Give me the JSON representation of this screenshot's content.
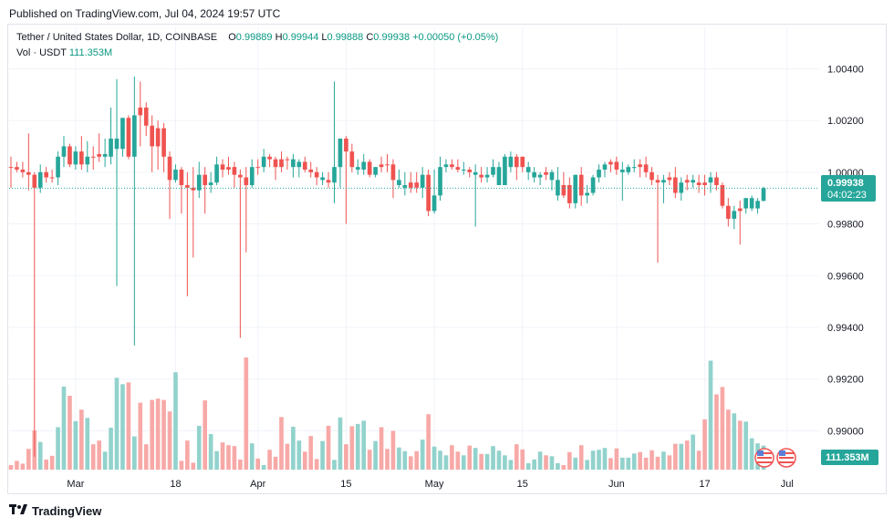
{
  "header": {
    "published": "Published on TradingView.com, Jul 04, 2024 19:57 UTC"
  },
  "legend": {
    "symbol": "Tether / United States Dollar, 1D, COINBASE",
    "o_label": "O",
    "o_value": "0.99889",
    "h_label": "H",
    "h_value": "0.99944",
    "l_label": "L",
    "l_value": "0.99888",
    "c_label": "C",
    "c_value": "0.99938",
    "change": "+0.00050 (+0.05%)",
    "vol_label": "Vol · USDT",
    "vol_value": "111.353M"
  },
  "footer": {
    "brand": "TradingView"
  },
  "colors": {
    "up": "#26a69a",
    "down": "#ef5350",
    "up_vol": "#92d2cc",
    "down_vol": "#f7a9a7",
    "grid": "#f0f3fa",
    "text": "#131722"
  },
  "chart_data": {
    "type": "candlestick",
    "price_axis": {
      "ticks": [
        "1.00400",
        "1.00200",
        "1.00000",
        "0.99800",
        "0.99600",
        "0.99400",
        "0.99200",
        "0.99000"
      ],
      "ylim": [
        0.9885,
        1.0056
      ]
    },
    "time_axis": {
      "labels": [
        "Mar",
        "18",
        "Apr",
        "15",
        "May",
        "15",
        "Jun",
        "17",
        "Jul"
      ]
    },
    "last_price": {
      "label": "0.99938",
      "countdown": "04:02:23",
      "value": 0.99938
    },
    "last_volume": {
      "label": "111.353M"
    },
    "candles": [
      [
        1.0002,
        1.0006,
        0.9994,
        1.0002,
        0.99,
        0
      ],
      [
        1.0002,
        1.0004,
        1.0,
        1.0001,
        1.9,
        0
      ],
      [
        1.0001,
        1.0004,
        0.9998,
        1.0,
        1.3,
        0
      ],
      [
        1.0,
        1.0015,
        0.9993,
        0.9999,
        4.5,
        0
      ],
      [
        0.9999,
        1.0,
        0.989,
        0.9994,
        8.5,
        0
      ],
      [
        0.9994,
        1.0003,
        0.9992,
        1.0,
        6.0,
        1
      ],
      [
        1.0,
        1.0002,
        0.9996,
        0.9998,
        2.2,
        0
      ],
      [
        0.9998,
        1.0001,
        0.9996,
        0.9998,
        3.0,
        0
      ],
      [
        0.9998,
        1.0008,
        0.9995,
        1.0006,
        9.2,
        1
      ],
      [
        1.0006,
        1.0014,
        1.0002,
        1.001,
        18.0,
        1
      ],
      [
        1.001,
        1.0011,
        1.0002,
        1.0003,
        16.0,
        0
      ],
      [
        1.0003,
        1.001,
        1.0001,
        1.0008,
        10.5,
        1
      ],
      [
        1.0008,
        1.0014,
        1.0001,
        1.0003,
        13.0,
        0
      ],
      [
        1.0003,
        1.0012,
        1.0,
        1.0006,
        11.2,
        1
      ],
      [
        1.0006,
        1.001,
        1.0001,
        1.0006,
        5.5,
        0
      ],
      [
        1.0006,
        1.0015,
        1.0004,
        1.0007,
        6.3,
        0
      ],
      [
        1.0007,
        1.0013,
        1.0002,
        1.0006,
        3.9,
        1
      ],
      [
        1.0006,
        1.0025,
        1.0003,
        1.0013,
        9.1,
        1
      ],
      [
        1.0013,
        1.0036,
        0.9956,
        1.0009,
        19.9,
        1
      ],
      [
        1.0009,
        1.0021,
        1.0006,
        1.0021,
        18.5,
        1
      ],
      [
        1.0021,
        1.0022,
        1.0005,
        1.0006,
        18.9,
        0
      ],
      [
        1.0006,
        1.0037,
        0.9933,
        1.0022,
        7.2,
        1
      ],
      [
        1.0022,
        1.0035,
        1.001,
        1.0025,
        14.5,
        0
      ],
      [
        1.0025,
        1.0027,
        1.0014,
        1.0018,
        5.5,
        0
      ],
      [
        1.0018,
        1.0022,
        1.0,
        1.001,
        15.1,
        0
      ],
      [
        1.001,
        1.002,
        1.0001,
        1.0017,
        15.4,
        0
      ],
      [
        1.0017,
        1.0019,
        1.0,
        1.0006,
        15.1,
        0
      ],
      [
        1.0006,
        1.0008,
        0.9982,
        0.9997,
        12.6,
        0
      ],
      [
        0.9997,
        1.0003,
        0.9996,
        1.0001,
        21.1,
        1
      ],
      [
        1.0001,
        1.0002,
        0.9984,
        0.9995,
        1.9,
        0
      ],
      [
        0.9995,
        1.0,
        0.9952,
        0.9994,
        6.3,
        0
      ],
      [
        0.9994,
        1.0002,
        0.9967,
        0.9993,
        1.5,
        0
      ],
      [
        0.9993,
        1.0004,
        0.999,
        0.9999,
        9.5,
        1
      ],
      [
        0.9999,
        1.0002,
        0.9984,
        0.9995,
        15.0,
        0
      ],
      [
        0.9995,
        1.0,
        0.9992,
        0.9996,
        7.7,
        1
      ],
      [
        0.9996,
        1.0006,
        0.9995,
        1.0003,
        4.0,
        1
      ],
      [
        1.0003,
        1.0005,
        0.9998,
        1.0001,
        5.9,
        0
      ],
      [
        1.0001,
        1.0006,
        0.9999,
        1.0002,
        5.3,
        0
      ],
      [
        1.0002,
        1.0004,
        0.9994,
        0.9999,
        5.1,
        0
      ],
      [
        0.9999,
        1.0001,
        0.9936,
        0.9998,
        2.2,
        0
      ],
      [
        0.9998,
        1.0002,
        0.9969,
        0.9995,
        24.3,
        0
      ],
      [
        0.9995,
        1.0005,
        0.9994,
        1.0002,
        5.7,
        1
      ],
      [
        1.0002,
        1.0005,
        0.9999,
        1.0002,
        2.4,
        0
      ],
      [
        1.0002,
        1.0009,
        1.0,
        1.0006,
        1.0,
        1
      ],
      [
        1.0006,
        1.0007,
        1.0002,
        1.0005,
        4.3,
        0
      ],
      [
        1.0005,
        1.0006,
        0.9997,
        1.0002,
        2.8,
        0
      ],
      [
        1.0002,
        1.0008,
        1.0,
        1.0005,
        11.4,
        0
      ],
      [
        1.0005,
        1.0006,
        1.0001,
        1.0005,
        5.6,
        0
      ],
      [
        1.0005,
        1.0007,
        0.9998,
        1.0002,
        9.3,
        1
      ],
      [
        1.0002,
        1.0005,
        0.9998,
        1.0004,
        6.3,
        1
      ],
      [
        1.0004,
        1.0006,
        1.0,
        1.0001,
        3.9,
        0
      ],
      [
        1.0001,
        1.0004,
        0.9998,
        1.0,
        7.3,
        0
      ],
      [
        1.0,
        1.0002,
        0.9995,
        0.9998,
        2.3,
        0
      ],
      [
        0.9998,
        1.0,
        0.9995,
        0.9997,
        6.2,
        1
      ],
      [
        0.9997,
        1.0,
        0.9994,
        0.9996,
        9.5,
        0
      ],
      [
        0.9996,
        1.0035,
        0.9988,
        1.0002,
        2.1,
        1
      ],
      [
        1.0002,
        1.0013,
        0.9994,
        1.0013,
        11.3,
        1
      ],
      [
        1.0013,
        1.0014,
        0.998,
        1.0008,
        5.5,
        0
      ],
      [
        1.0008,
        1.0011,
        1.0,
        1.0002,
        9.4,
        0
      ],
      [
        1.0002,
        1.0005,
        0.9999,
        1.0001,
        9.9,
        1
      ],
      [
        1.0001,
        1.0007,
        0.9999,
        1.0004,
        10.6,
        1
      ],
      [
        1.0004,
        1.0005,
        0.9998,
        0.9999,
        4.3,
        0
      ],
      [
        0.9999,
        1.0002,
        0.9998,
        1.0002,
        6.2,
        1
      ],
      [
        1.0002,
        1.0006,
        1.0,
        1.0003,
        9.2,
        0
      ],
      [
        1.0003,
        1.0007,
        1.0,
        1.0003,
        4.5,
        0
      ],
      [
        1.0003,
        1.0005,
        0.999,
        0.9997,
        8.4,
        0
      ],
      [
        0.9997,
        1.0001,
        0.9994,
        0.9995,
        4.8,
        1
      ],
      [
        0.9995,
        1.0,
        0.9991,
        0.9994,
        4.0,
        1
      ],
      [
        0.9994,
        1.0,
        0.9992,
        0.9996,
        2.9,
        0
      ],
      [
        0.9996,
        1.0,
        0.9992,
        0.9994,
        4.0,
        0
      ],
      [
        0.9994,
        1.0002,
        0.999,
        0.9999,
        6.5,
        1
      ],
      [
        0.9999,
        1.0001,
        0.9983,
        0.9985,
        12.0,
        0
      ],
      [
        0.9985,
        1.0001,
        0.9984,
        0.9991,
        5.0,
        1
      ],
      [
        0.9991,
        1.0006,
        0.9989,
        1.0002,
        4.1,
        1
      ],
      [
        1.0002,
        1.0005,
        1.0,
        1.0003,
        3.1,
        1
      ],
      [
        1.0003,
        1.0005,
        1.0001,
        1.0002,
        5.3,
        0
      ],
      [
        1.0002,
        1.0005,
        1.0,
        1.0001,
        3.9,
        0
      ],
      [
        1.0001,
        1.0004,
        0.9999,
        1.0001,
        3.1,
        1
      ],
      [
        1.0001,
        1.0002,
        0.9998,
        1.0,
        5.2,
        0
      ],
      [
        1.0,
        1.0003,
        0.9979,
        0.9999,
        4.7,
        1
      ],
      [
        0.9999,
        1.0002,
        0.9996,
        0.9998,
        3.4,
        0
      ],
      [
        0.9998,
        1.0002,
        0.9996,
        0.9999,
        3.4,
        1
      ],
      [
        0.9999,
        1.0005,
        0.9998,
        1.0002,
        5.1,
        1
      ],
      [
        1.0002,
        1.0004,
        0.9996,
        0.9995,
        4.1,
        1
      ],
      [
        0.9995,
        1.0007,
        0.9995,
        1.0006,
        3.1,
        1
      ],
      [
        1.0006,
        1.0008,
        1.0,
        1.0002,
        2.1,
        1
      ],
      [
        1.0002,
        1.0007,
        0.9997,
        1.0006,
        5.5,
        0
      ],
      [
        1.0006,
        1.0006,
        1.0,
        1.0002,
        4.4,
        0
      ],
      [
        1.0002,
        1.0004,
        0.9997,
        1.0,
        1.4,
        1
      ],
      [
        1.0,
        1.0002,
        0.9996,
        0.9998,
        2.2,
        1
      ],
      [
        0.9998,
        1.0,
        0.9995,
        0.9999,
        3.9,
        1
      ],
      [
        0.9999,
        1.0002,
        0.9997,
        1.0,
        3.1,
        0
      ],
      [
        1.0,
        1.0001,
        0.9993,
        0.9997,
        2.9,
        1
      ],
      [
        0.9997,
        1.0002,
        0.9989,
        0.9991,
        1.4,
        1
      ],
      [
        0.9991,
        1.0,
        0.999,
        0.9995,
        1.0,
        0
      ],
      [
        0.9995,
        0.9998,
        0.9986,
        0.9988,
        3.8,
        0
      ],
      [
        0.9988,
        0.9999,
        0.9986,
        0.9999,
        2.6,
        1
      ],
      [
        0.9999,
        1.0002,
        0.9987,
        0.9991,
        5.3,
        0
      ],
      [
        0.9991,
        0.9995,
        0.9988,
        0.9992,
        2.1,
        1
      ],
      [
        0.9992,
        0.9999,
        0.9991,
        0.9998,
        4.1,
        1
      ],
      [
        0.9998,
        1.0003,
        0.9996,
        1.0001,
        4.3,
        1
      ],
      [
        1.0001,
        1.0004,
        0.9998,
        1.0003,
        4.7,
        1
      ],
      [
        1.0003,
        1.0005,
        1.0,
        1.0004,
        2.5,
        0
      ],
      [
        1.0004,
        1.0006,
        0.9999,
        1.0001,
        4.6,
        0
      ],
      [
        1.0001,
        1.0004,
        0.9989,
        1.0,
        2.6,
        1
      ],
      [
        1.0,
        1.0003,
        0.9999,
        1.0002,
        2.6,
        1
      ],
      [
        1.0002,
        1.0005,
        1.0,
        1.0002,
        3.5,
        1
      ],
      [
        1.0002,
        1.0005,
        0.9998,
        1.0003,
        3.8,
        0
      ],
      [
        1.0003,
        1.0006,
        0.9998,
        1.0,
        2.6,
        0
      ],
      [
        1.0,
        1.0002,
        0.9995,
        0.9997,
        4.2,
        0
      ],
      [
        0.9997,
        0.9999,
        0.9965,
        0.9996,
        2.8,
        0
      ],
      [
        0.9996,
        0.9999,
        0.9988,
        0.9997,
        3.9,
        1
      ],
      [
        0.9997,
        1.0,
        0.9995,
        0.9998,
        3.1,
        0
      ],
      [
        0.9998,
        1.0002,
        0.999,
        0.9992,
        5.6,
        0
      ],
      [
        0.9992,
        0.9998,
        0.9989,
        0.9996,
        5.6,
        1
      ],
      [
        0.9996,
        0.9999,
        0.9993,
        0.9997,
        6.3,
        0
      ],
      [
        0.9997,
        0.9999,
        0.9994,
        0.9996,
        7.6,
        1
      ],
      [
        0.9996,
        0.9999,
        0.9992,
        0.9995,
        4.1,
        0
      ],
      [
        0.9995,
        0.9999,
        0.9991,
        0.9996,
        10.9,
        0
      ],
      [
        0.9996,
        1.0,
        0.9992,
        0.9998,
        23.6,
        1
      ],
      [
        0.9998,
        1.0,
        0.9993,
        0.9995,
        16.3,
        0
      ],
      [
        0.9995,
        0.9996,
        0.9986,
        0.9987,
        17.9,
        0
      ],
      [
        0.9987,
        0.999,
        0.9979,
        0.9982,
        13.0,
        0
      ],
      [
        0.9982,
        0.9987,
        0.9978,
        0.9985,
        12.2,
        1
      ],
      [
        0.9985,
        0.9989,
        0.9972,
        0.9986,
        10.6,
        0
      ],
      [
        0.9986,
        0.999,
        0.9984,
        0.999,
        10.4,
        1
      ],
      [
        0.999,
        0.9991,
        0.9985,
        0.9986,
        6.8,
        1
      ],
      [
        0.9986,
        0.999,
        0.9984,
        0.99889,
        5.7,
        1
      ],
      [
        0.99889,
        0.99944,
        0.99888,
        0.99938,
        5.2,
        1
      ]
    ]
  }
}
